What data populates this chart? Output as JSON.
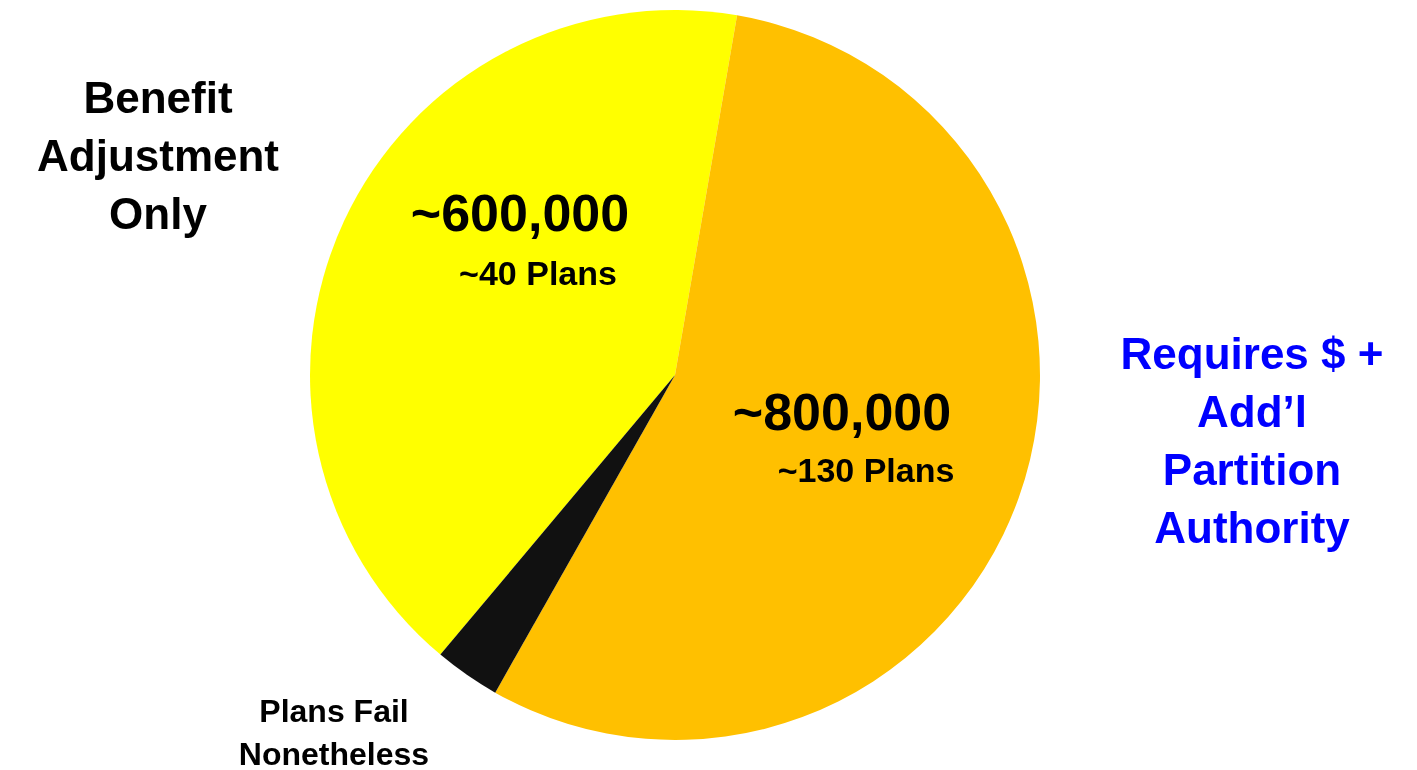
{
  "chart_data": {
    "type": "pie",
    "categories": [
      "Benefit Adjustment Only",
      "Requires $ + Add’l Partition Authority",
      "Plans Fail Nonetheless"
    ],
    "values": [
      600000,
      800000,
      42000
    ],
    "colors": [
      "#ffff00",
      "#ffc000",
      "#111111"
    ],
    "value_labels": [
      "~600,000",
      "~800,000",
      null
    ],
    "annotations": [
      "~40 Plans",
      "~130 Plans"
    ]
  }
}
